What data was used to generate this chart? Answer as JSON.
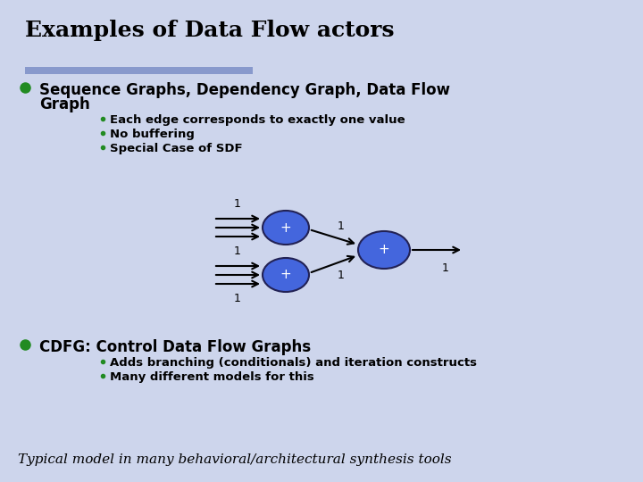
{
  "title": "Examples of Data Flow actors",
  "bg_color": "#cdd5ec",
  "title_color": "#000000",
  "title_fontsize": 18,
  "title_weight": "bold",
  "divider_color": "#8899cc",
  "bullet_color": "#228B22",
  "bullet1_text_line1": "Sequence Graphs, Dependency Graph, Data Flow",
  "bullet1_text_line2": "Graph",
  "bullet1_fontsize": 12,
  "sub_bullets1": [
    "Each edge corresponds to exactly one value",
    "No buffering",
    "Special Case of SDF"
  ],
  "sub_bullet_fontsize": 9.5,
  "bullet2_text": "CDFG: Control Data Flow Graphs",
  "bullet2_fontsize": 12,
  "sub_bullets2": [
    "Adds branching (conditionals) and iteration constructs",
    "Many different models for this"
  ],
  "footer_text": "Typical model in many behavioral/architectural synthesis tools",
  "footer_fontsize": 11,
  "node_color": "#4466dd",
  "node_edge_color": "#222255",
  "node_text_color": "#ffffff",
  "arrow_color": "#000000",
  "label_color": "#000000",
  "label_fontsize": 9
}
